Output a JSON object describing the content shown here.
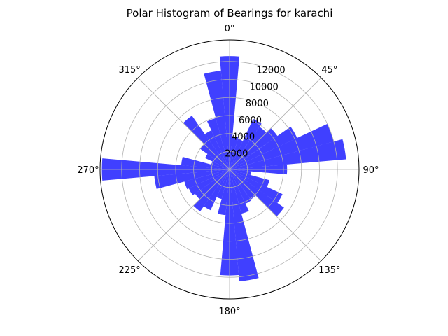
{
  "chart_data": {
    "type": "bar",
    "subtype": "polar-histogram",
    "title": "Polar Histogram of Bearings for karachi",
    "theta_direction": "clockwise",
    "theta_zero": "north",
    "bin_width_deg": 10,
    "bins_deg": [
      0,
      10,
      20,
      30,
      40,
      50,
      60,
      70,
      80,
      90,
      100,
      110,
      120,
      130,
      140,
      150,
      160,
      170,
      180,
      190,
      200,
      210,
      220,
      230,
      240,
      250,
      260,
      270,
      280,
      290,
      300,
      310,
      320,
      330,
      340,
      350
    ],
    "values": [
      12600,
      3700,
      3500,
      6200,
      5800,
      6500,
      8300,
      12000,
      13000,
      6400,
      2400,
      4600,
      6500,
      7400,
      4100,
      4200,
      5100,
      12500,
      11800,
      5100,
      3400,
      5000,
      5700,
      4700,
      5000,
      5200,
      8400,
      14200,
      5400,
      2100,
      3000,
      4000,
      7300,
      4800,
      5900,
      11000
    ],
    "r_ticks": [
      2000,
      4000,
      6000,
      8000,
      10000,
      12000
    ],
    "r_tick_labels": [
      "2000",
      "4000",
      "6000",
      "8000",
      "10000",
      "12000"
    ],
    "r_max": 14400,
    "theta_tick_labels": [
      "0°",
      "45°",
      "90°",
      "135°",
      "180°",
      "225°",
      "270°",
      "315°"
    ],
    "theta_ticks_deg": [
      0,
      45,
      90,
      135,
      180,
      225,
      270,
      315
    ],
    "grid": true,
    "bar_color": "#0000ff",
    "bar_alpha": 0.75
  }
}
